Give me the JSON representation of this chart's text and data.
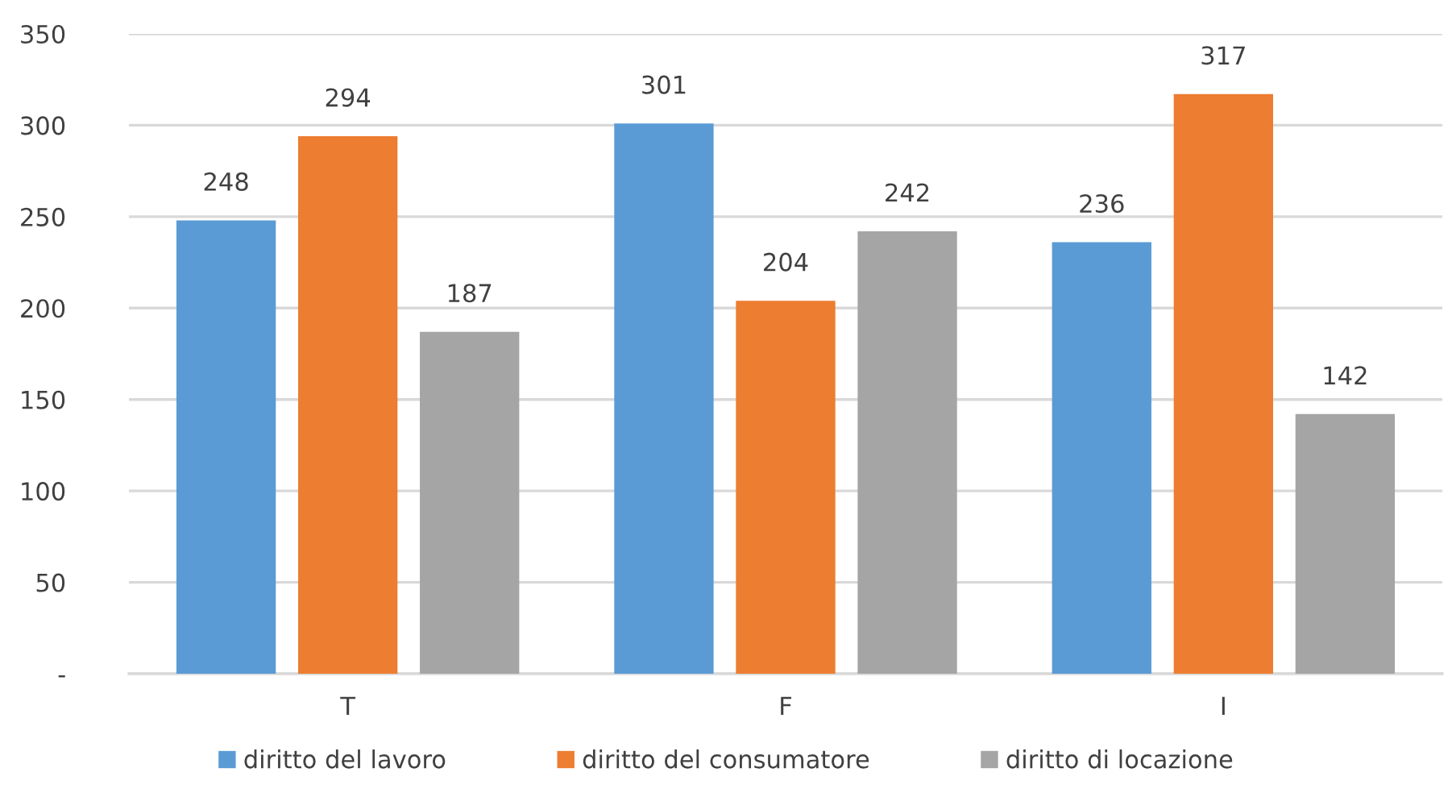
{
  "chart_data": {
    "type": "bar",
    "categories": [
      "T",
      "F",
      "I"
    ],
    "series": [
      {
        "name": "diritto del lavoro",
        "color": "#5b9bd5",
        "values": [
          248,
          301,
          236
        ]
      },
      {
        "name": "diritto del consumatore",
        "color": "#ed7d31",
        "values": [
          294,
          204,
          317
        ]
      },
      {
        "name": "diritto di locazione",
        "color": "#a5a5a5",
        "values": [
          187,
          242,
          142
        ]
      }
    ],
    "ylim": [
      0,
      350
    ],
    "yticks": [
      {
        "value": 0,
        "label": "-"
      },
      50,
      100,
      150,
      200,
      250,
      300,
      350
    ],
    "grid": "y",
    "legend": "bottom",
    "data_labels": true
  }
}
